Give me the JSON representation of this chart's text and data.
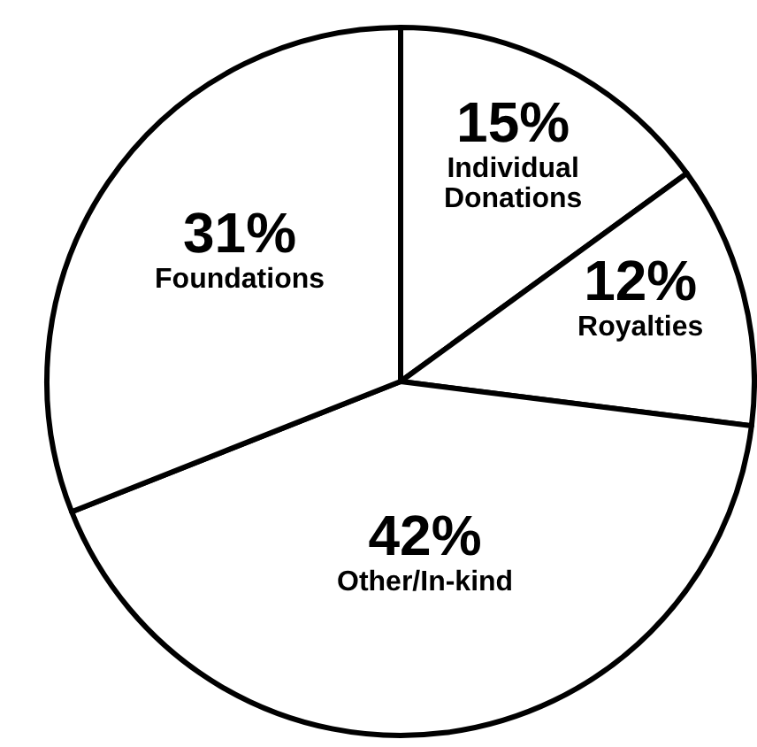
{
  "chart_data": {
    "type": "pie",
    "categories": [
      "Individual Donations",
      "Royalties",
      "Other/In-kind",
      "Foundations"
    ],
    "values": [
      15,
      12,
      42,
      31
    ],
    "colors": [
      "#ffffff",
      "#ffffff",
      "#ffffff",
      "#ffffff"
    ],
    "value_labels": [
      "15%",
      "12%",
      "42%",
      "31%"
    ]
  }
}
